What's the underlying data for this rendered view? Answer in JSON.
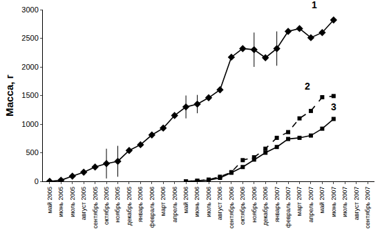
{
  "chart_data": {
    "type": "line",
    "y_label": "Масса, г",
    "categories": [
      "май 2005",
      "июнь 2005",
      "июль 2005",
      "август 2005",
      "сентябрь 2005",
      "октябрь 2005",
      "ноябрь 2005",
      "декабрь 2005",
      "январь 2006",
      "февраль 2006",
      "март 2006",
      "апрель 2006",
      "май 2006",
      "июнь 2006",
      "июль 2006",
      "август 2006",
      "сентябрь 2006",
      "октябрь 2006",
      "ноябрь 2006",
      "декабрь 2006",
      "январь 2007",
      "февраль 2007",
      "март 2007",
      "апрель 2007",
      "май 2007",
      "июнь 2007",
      "июль 2007",
      "август 2007",
      "сентябрь 2007"
    ],
    "series": [
      {
        "name": "1",
        "color": "#000000",
        "marker": "diamond",
        "line_style": "solid",
        "values": [
          0,
          20,
          90,
          160,
          250,
          310,
          350,
          540,
          640,
          810,
          930,
          1150,
          1300,
          1350,
          1460,
          1600,
          2170,
          2320,
          2300,
          2160,
          2320,
          2620,
          2670,
          2510,
          2600,
          2820,
          null,
          null,
          null
        ],
        "errors": [
          null,
          null,
          null,
          null,
          null,
          260,
          270,
          null,
          null,
          null,
          null,
          null,
          200,
          160,
          null,
          null,
          null,
          null,
          300,
          null,
          300,
          null,
          null,
          null,
          null,
          null,
          null,
          null,
          null
        ]
      },
      {
        "name": "2",
        "color": "#000000",
        "marker": "square",
        "line_style": "dash",
        "values": [
          null,
          null,
          null,
          null,
          null,
          null,
          null,
          null,
          null,
          null,
          null,
          null,
          0,
          10,
          30,
          80,
          160,
          370,
          420,
          570,
          760,
          860,
          1100,
          1230,
          1470,
          1490,
          null,
          null,
          null
        ]
      },
      {
        "name": "3",
        "color": "#000000",
        "marker": "square",
        "line_style": "solid",
        "values": [
          null,
          null,
          null,
          null,
          null,
          null,
          null,
          null,
          null,
          null,
          null,
          null,
          0,
          10,
          20,
          60,
          150,
          250,
          380,
          500,
          600,
          740,
          760,
          800,
          920,
          1090,
          null,
          null,
          null
        ]
      }
    ],
    "ylim": [
      0,
      3000
    ],
    "yticks": [
      0,
      500,
      1000,
      1500,
      2000,
      2500,
      3000
    ],
    "grid": false
  }
}
